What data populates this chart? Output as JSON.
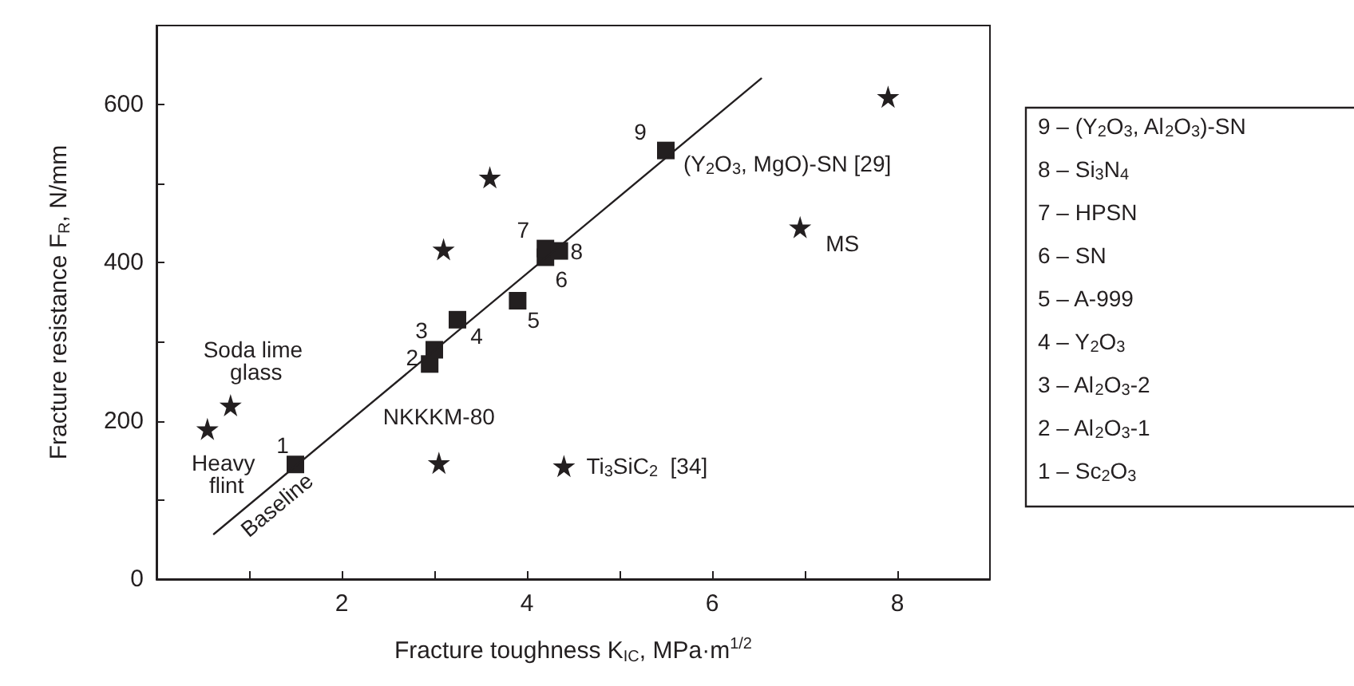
{
  "chart_data": {
    "type": "scatter",
    "xlabel": "Fracture toughness K$_{IC}$, MPa·m$^{1/2}$",
    "ylabel": "Fracture resistance F$_{R}$, N/mm",
    "xlim": [
      0,
      9
    ],
    "xticks": [
      {
        "value": 1,
        "label": null
      },
      2,
      {
        "value": 3,
        "label": null
      },
      4,
      {
        "value": 5,
        "label": null
      },
      6,
      {
        "value": 7,
        "label": null
      },
      8
    ],
    "ylim": [
      0,
      700
    ],
    "yticks": [
      0,
      {
        "value": 100,
        "label": null
      },
      200,
      {
        "value": 300,
        "label": null
      },
      400,
      {
        "value": 500,
        "label": null
      },
      600
    ],
    "grid": false,
    "series": [
      {
        "type": "line",
        "name": "Baseline",
        "color": "#231f20",
        "marker": "none",
        "x": [
          0.62,
          6.53
        ],
        "values": [
          57,
          633
        ]
      },
      {
        "color": "#231f20",
        "marker": "square",
        "x": [
          1.5,
          2.95,
          3.0,
          3.25,
          3.9,
          4.2,
          4.2,
          4.35,
          5.5
        ],
        "values": [
          145,
          272,
          290,
          328,
          352,
          407,
          418,
          415,
          542
        ]
      },
      {
        "color": "#231f20",
        "marker": "star",
        "x": [
          0.55,
          0.8,
          3.1,
          3.6,
          3.05,
          4.4,
          6.95,
          7.9
        ],
        "values": [
          190,
          220,
          417,
          508,
          147,
          143,
          445,
          610
        ],
        "value_labels": [
          "Heavy flint",
          "Soda lime glass",
          null,
          null,
          "NKKKM-80",
          "Ti$_{3}$SiC$_{2}$  [34]",
          "MS",
          null
        ]
      }
    ],
    "annotations": [
      {
        "text": "1",
        "x": 1.5,
        "y": 145
      },
      {
        "text": "2",
        "x": 2.95,
        "y": 272
      },
      {
        "text": "3",
        "x": 3.0,
        "y": 290
      },
      {
        "text": "4",
        "x": 3.25,
        "y": 328
      },
      {
        "text": "5",
        "x": 3.9,
        "y": 352
      },
      {
        "text": "6",
        "x": 4.2,
        "y": 407
      },
      {
        "text": "7",
        "x": 4.2,
        "y": 418
      },
      {
        "text": "8",
        "x": 4.35,
        "y": 415
      },
      {
        "text": "9",
        "x": 5.5,
        "y": 542
      },
      {
        "text": "(Y$_{2}$O$_{3}$, MgO)-SN [29]",
        "x": 5.5,
        "y": 542
      },
      "9 – (Y$_{2}$O$_{3}$, Al$_{2}$O$_{3}$)-SN",
      "8 – Si$_{3}$N$_{4}$",
      "7 – HPSN",
      "6 – SN",
      "5 – A-999",
      "4 – Y$_{2}$O$_{3}$",
      "3 – Al$_{2}$O$_{3}$-2",
      "2 – Al$_{2}$O$_{3}$-1",
      "1 – Sc$_{2}$O$_{3}$"
    ]
  }
}
